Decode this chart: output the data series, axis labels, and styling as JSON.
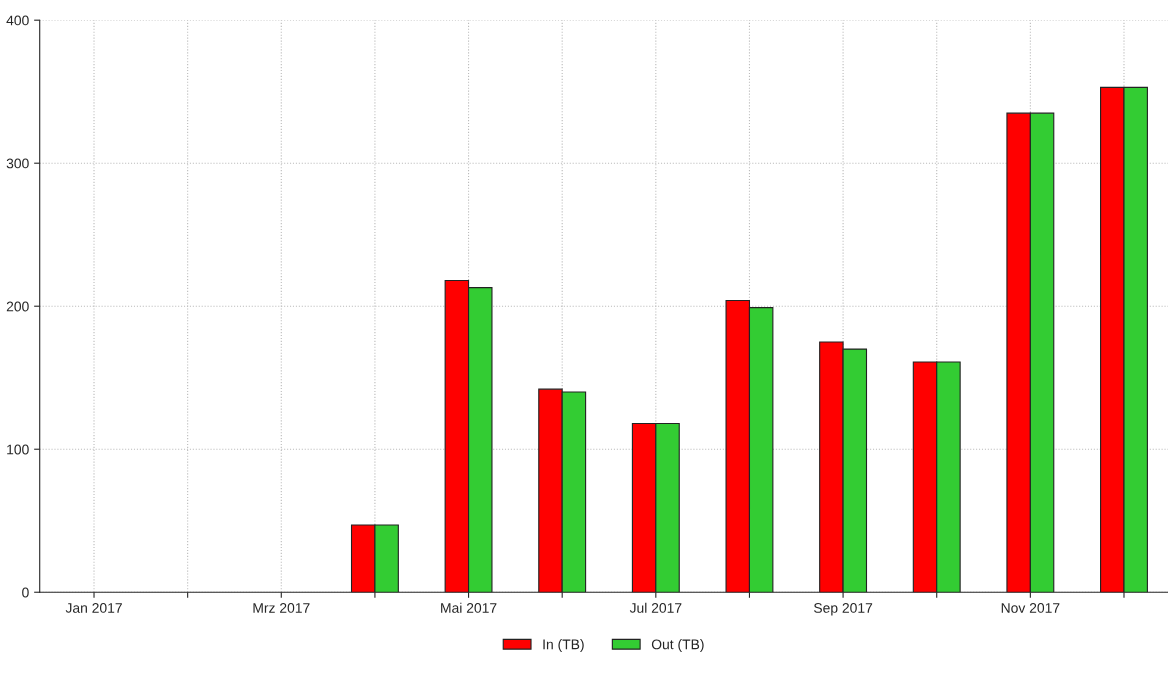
{
  "chart_data": {
    "type": "bar",
    "categories": [
      "Jan 2017",
      null,
      "Mrz 2017",
      null,
      "Mai 2017",
      null,
      "Jul 2017",
      null,
      "Sep 2017",
      null,
      "Nov 2017",
      null
    ],
    "series": [
      {
        "name": "In (TB)",
        "color": "#ff0000",
        "values": [
          null,
          null,
          null,
          47,
          218,
          142,
          118,
          204,
          175,
          161,
          335,
          353
        ]
      },
      {
        "name": "Out (TB)",
        "color": "#33cc33",
        "values": [
          null,
          null,
          null,
          47,
          213,
          140,
          118,
          199,
          170,
          161,
          335,
          353
        ]
      }
    ],
    "ylim": [
      0,
      400
    ],
    "yticks": [
      0,
      100,
      200,
      300,
      400
    ],
    "grid": true,
    "legend": "bottom"
  }
}
